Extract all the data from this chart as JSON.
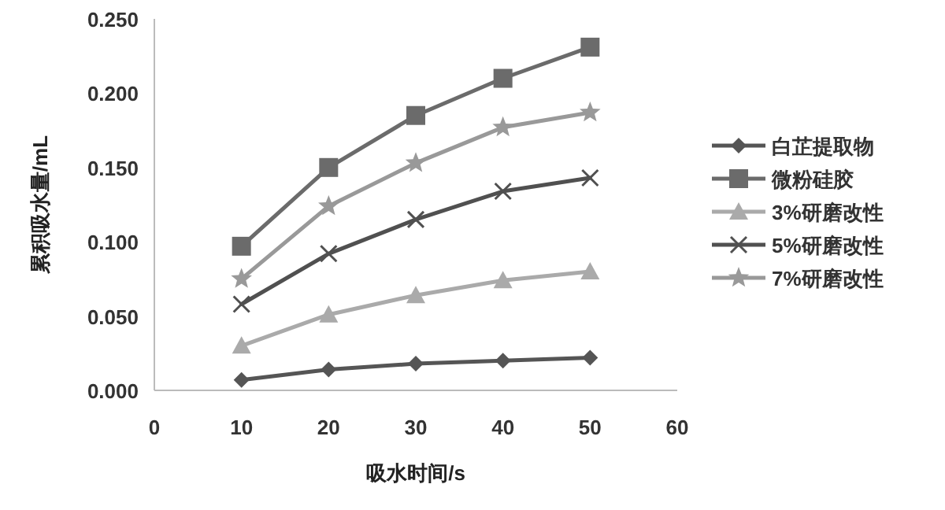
{
  "chart_data": {
    "type": "line",
    "xlabel": "吸水时间/s",
    "ylabel": "累积吸水量/mL",
    "x": [
      10,
      20,
      30,
      40,
      50
    ],
    "xlim": [
      0,
      60
    ],
    "xticks": [
      0,
      10,
      20,
      30,
      40,
      50,
      60
    ],
    "ylim": [
      0,
      0.25
    ],
    "yticks": [
      {
        "value": 0,
        "label": "0.000"
      },
      {
        "value": 0.05,
        "label": "0.050"
      },
      {
        "value": 0.1,
        "label": "0.100"
      },
      {
        "value": 0.15,
        "label": "0.150"
      },
      {
        "value": 0.2,
        "label": "0.200"
      },
      {
        "value": 0.25,
        "label": "0.250"
      }
    ],
    "grid": false,
    "legend": "right",
    "series": [
      {
        "name": "白芷提取物",
        "color": "#555555",
        "marker": "diamond",
        "values": [
          0.007,
          0.014,
          0.018,
          0.02,
          0.022
        ]
      },
      {
        "name": "微粉硅胶",
        "color": "#6b6b6b",
        "marker": "square",
        "values": [
          0.097,
          0.15,
          0.185,
          0.21,
          0.231
        ]
      },
      {
        "name": "3%研磨改性",
        "color": "#aaaaaa",
        "marker": "triangle",
        "values": [
          0.03,
          0.051,
          0.064,
          0.074,
          0.08
        ]
      },
      {
        "name": "5%研磨改性",
        "color": "#505050",
        "marker": "cross",
        "values": [
          0.058,
          0.092,
          0.115,
          0.134,
          0.143
        ]
      },
      {
        "name": "7%研磨改性",
        "color": "#999999",
        "marker": "star",
        "values": [
          0.075,
          0.124,
          0.153,
          0.177,
          0.187
        ]
      }
    ]
  }
}
